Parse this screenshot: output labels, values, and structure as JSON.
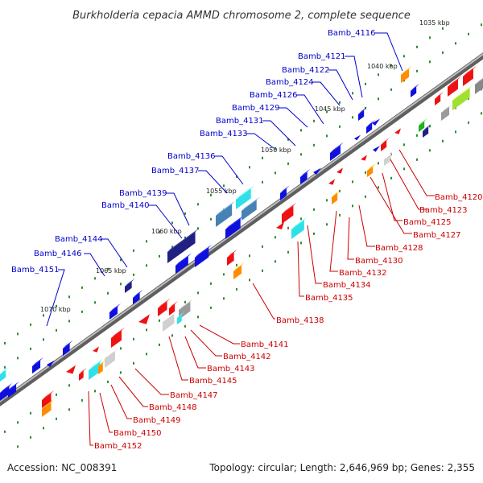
{
  "title": "Burkholderia cepacia AMMD chromosome 2, complete sequence",
  "footer": {
    "accession": "Accession: NC_008391",
    "summary": "Topology: circular; Length: 2,646,969 bp; Genes: 2,355"
  },
  "colors": {
    "forward_label": "#0000cc",
    "reverse_label": "#cc0000",
    "backbone": "#8a8a8a",
    "tick_green": "#2e8b2e"
  },
  "kbp_marks": [
    "1035 kbp",
    "1040 kbp",
    "1045 kbp",
    "1050 kbp",
    "1055 kbp",
    "1060 kbp",
    "1065 kbp",
    "1070 kbp"
  ],
  "forward_genes": [
    "Bamb_4116",
    "Bamb_4121",
    "Bamb_4122",
    "Bamb_4124",
    "Bamb_4126",
    "Bamb_4129",
    "Bamb_4131",
    "Bamb_4133",
    "Bamb_4136",
    "Bamb_4137",
    "Bamb_4139",
    "Bamb_4140",
    "Bamb_4144",
    "Bamb_4146",
    "Bamb_4151"
  ],
  "reverse_genes": [
    "Bamb_4120",
    "Bamb_4123",
    "Bamb_4125",
    "Bamb_4127",
    "Bamb_4128",
    "Bamb_4130",
    "Bamb_4132",
    "Bamb_4134",
    "Bamb_4135",
    "Bamb_4138",
    "Bamb_4141",
    "Bamb_4142",
    "Bamb_4143",
    "Bamb_4145",
    "Bamb_4147",
    "Bamb_4148",
    "Bamb_4149",
    "Bamb_4150",
    "Bamb_4152"
  ]
}
